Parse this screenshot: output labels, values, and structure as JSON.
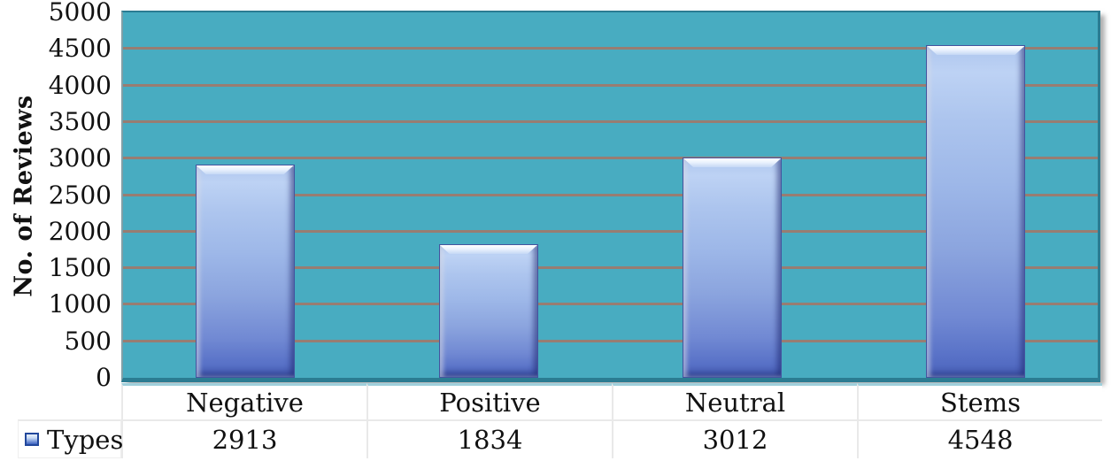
{
  "chart_data": {
    "type": "bar",
    "title": "",
    "categories": [
      "Negative",
      "Positive",
      "Neutral",
      "Stems"
    ],
    "series": [
      {
        "name": "Types",
        "values": [
          2913,
          1834,
          3012,
          4548
        ]
      }
    ],
    "xlabel": "",
    "ylabel": "No. of Reviews",
    "ylim": [
      0,
      5000
    ],
    "ytick_step": 500,
    "ytick_labels": [
      "5000",
      "4500",
      "4000",
      "3500",
      "3000",
      "2500",
      "2000",
      "1500",
      "1000",
      "500",
      "0"
    ],
    "grid": true,
    "gridline_values": [
      500,
      1000,
      1500,
      2000,
      2500,
      3000,
      3500,
      4000,
      4500
    ],
    "legend_position": "bottom-left",
    "data_table_shown": true
  },
  "legend": {
    "series_label": "Types",
    "key_icon": "bar-series-key-icon"
  },
  "colors": {
    "plot_background": "#48acc1",
    "plot_frame": "#2b7c92",
    "gridline": "#9d7a6e",
    "bar_gradient_top": "#aec6ee",
    "bar_gradient_bottom": "#4b63bc",
    "bar_border": "#44549f",
    "table_border": "#e9e9e9",
    "header_top_strip": "#9fcfdb",
    "text": "#111111"
  }
}
